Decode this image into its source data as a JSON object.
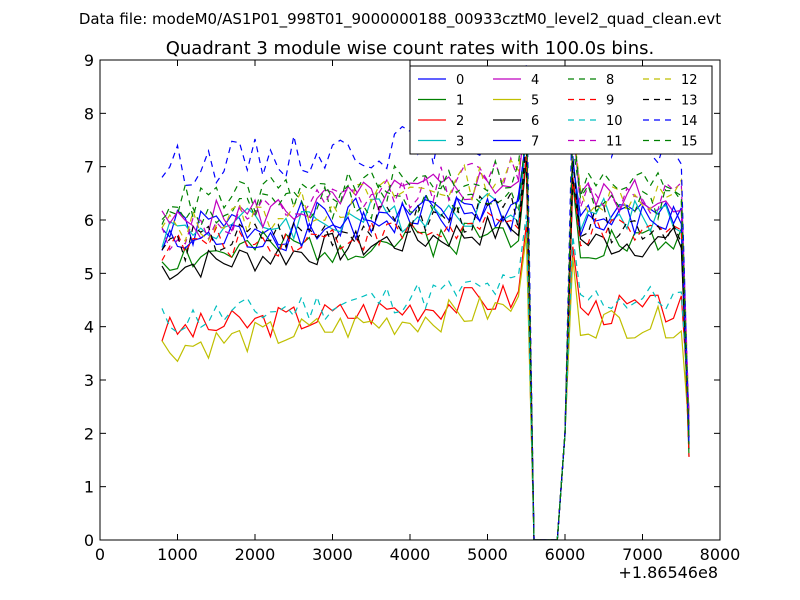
{
  "chart_data": {
    "type": "line",
    "suptitle": "Data file: modeM0/AS1P01_998T01_9000000188_00933cztM0_level2_quad_clean.evt",
    "title": "Quadrant 3 module wise count rates with 100.0s bins.",
    "xlabel": "",
    "ylabel": "",
    "x_offset_label": "+1.86546e8",
    "xlim": [
      0,
      8000
    ],
    "ylim": [
      0,
      9
    ],
    "x_ticks": [
      "0",
      "1000",
      "2000",
      "3000",
      "4000",
      "5000",
      "6000",
      "7000",
      "8000"
    ],
    "y_ticks": [
      "0",
      "1",
      "2",
      "3",
      "4",
      "5",
      "6",
      "7",
      "8",
      "9"
    ],
    "legend_position": "top-right",
    "x_start": 800,
    "x_step": 100,
    "x_count": 69,
    "gap_start": 5600,
    "gap_end": 5900,
    "series": [
      {
        "name": "0",
        "color": "#0000ff",
        "dash": "solid",
        "base": 5.8,
        "end": 6.2,
        "amp": 0.4,
        "seed": 1
      },
      {
        "name": "1",
        "color": "#008000",
        "dash": "solid",
        "base": 5.3,
        "end": 5.8,
        "amp": 0.35,
        "seed": 2
      },
      {
        "name": "2",
        "color": "#ff0000",
        "dash": "solid",
        "base": 3.9,
        "end": 4.6,
        "amp": 0.3,
        "seed": 3
      },
      {
        "name": "3",
        "color": "#00bfbf",
        "dash": "solid",
        "base": 5.8,
        "end": 6.3,
        "amp": 0.35,
        "seed": 4
      },
      {
        "name": "4",
        "color": "#bf00bf",
        "dash": "solid",
        "base": 5.9,
        "end": 6.8,
        "amp": 0.35,
        "seed": 5
      },
      {
        "name": "5",
        "color": "#bfbf00",
        "dash": "solid",
        "base": 3.6,
        "end": 4.4,
        "amp": 0.3,
        "seed": 6
      },
      {
        "name": "6",
        "color": "#000000",
        "dash": "solid",
        "base": 5.1,
        "end": 5.9,
        "amp": 0.3,
        "seed": 7
      },
      {
        "name": "7",
        "color": "#0000ff",
        "dash": "solid",
        "base": 5.5,
        "end": 6.3,
        "amp": 0.35,
        "seed": 8
      },
      {
        "name": "8",
        "color": "#008000",
        "dash": "dashed",
        "base": 6.1,
        "end": 6.5,
        "amp": 0.35,
        "seed": 9
      },
      {
        "name": "9",
        "color": "#ff0000",
        "dash": "dashed",
        "base": 5.5,
        "end": 5.9,
        "amp": 0.3,
        "seed": 10
      },
      {
        "name": "10",
        "color": "#00bfbf",
        "dash": "dashed",
        "base": 4.1,
        "end": 4.8,
        "amp": 0.3,
        "seed": 11
      },
      {
        "name": "11",
        "color": "#bf00bf",
        "dash": "dashed",
        "base": 5.7,
        "end": 7.0,
        "amp": 0.35,
        "seed": 12
      },
      {
        "name": "12",
        "color": "#bfbf00",
        "dash": "dashed",
        "base": 5.8,
        "end": 6.9,
        "amp": 0.35,
        "seed": 13
      },
      {
        "name": "13",
        "color": "#000000",
        "dash": "dashed",
        "base": 5.5,
        "end": 6.2,
        "amp": 0.35,
        "seed": 14
      },
      {
        "name": "14",
        "color": "#0000ff",
        "dash": "dashed",
        "base": 7.0,
        "end": 7.6,
        "amp": 0.4,
        "seed": 15
      },
      {
        "name": "15",
        "color": "#008000",
        "dash": "dashed",
        "base": 6.3,
        "end": 6.9,
        "amp": 0.35,
        "seed": 16
      }
    ]
  }
}
